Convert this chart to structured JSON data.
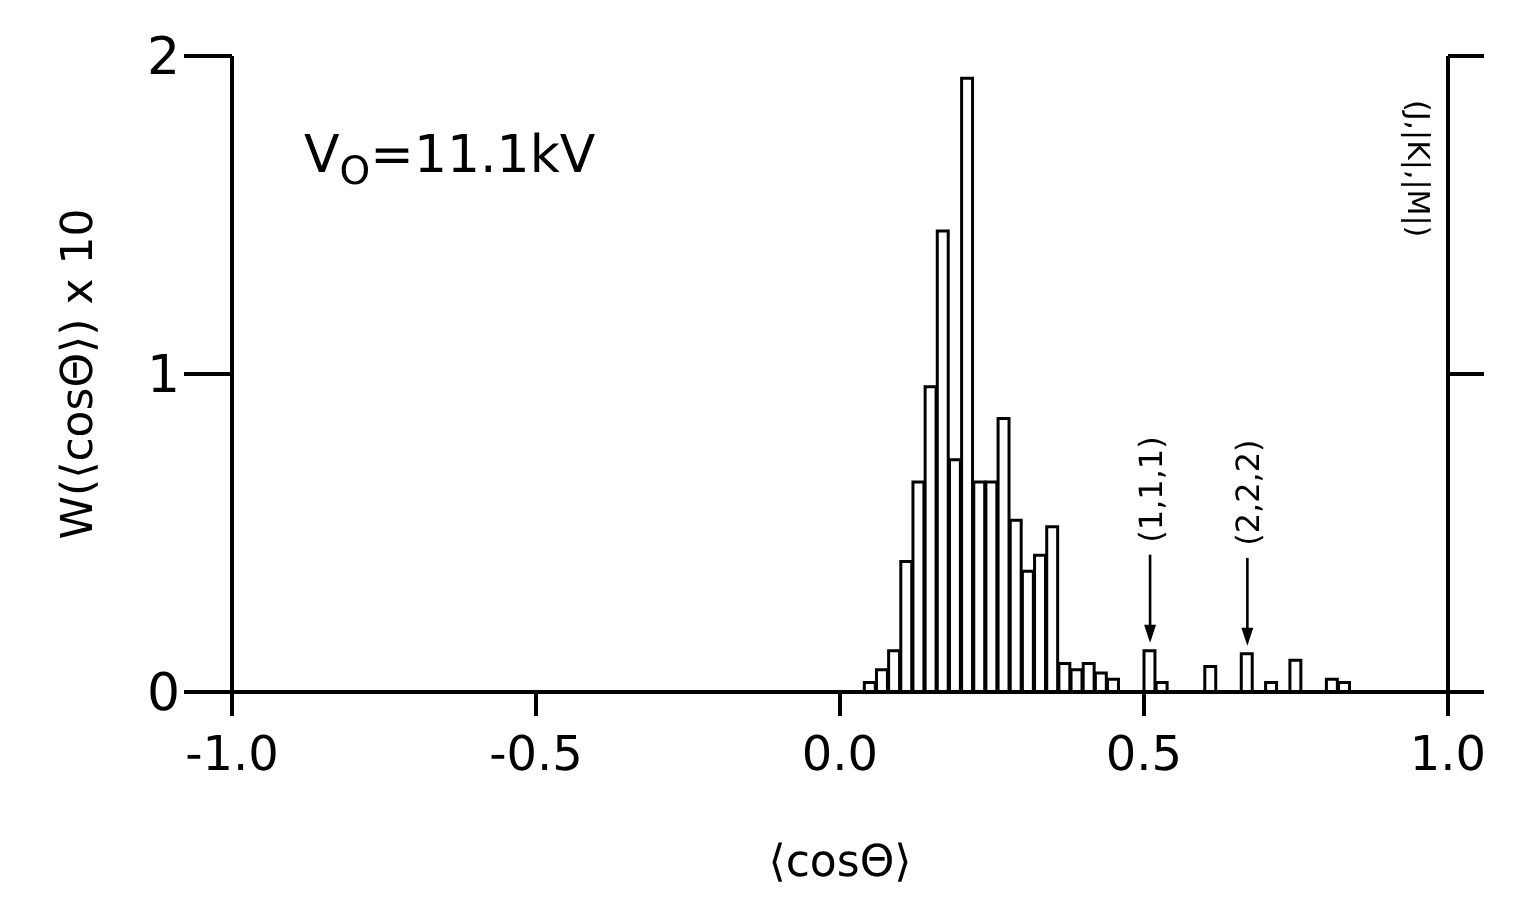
{
  "chart_data": {
    "type": "histogram",
    "xlabel": "⟨cosΘ⟩",
    "ylabel": "W(⟨cosΘ⟩) x 10",
    "bins": [
      0.04,
      0.06,
      0.08,
      0.1,
      0.12,
      0.14,
      0.16,
      0.18,
      0.2,
      0.22,
      0.24,
      0.26,
      0.28,
      0.3,
      0.32,
      0.34,
      0.36,
      0.38,
      0.4,
      0.42,
      0.44,
      0.46,
      0.48,
      0.5,
      0.52,
      0.54,
      0.56,
      0.58,
      0.6,
      0.62,
      0.64,
      0.66,
      0.68,
      0.7,
      0.72,
      0.74,
      0.76,
      0.78,
      0.8,
      0.82,
      0.84
    ],
    "values": [
      0.03,
      0.07,
      0.13,
      0.41,
      0.66,
      0.96,
      1.45,
      0.73,
      1.93,
      0.66,
      0.66,
      0.86,
      0.54,
      0.38,
      0.43,
      0.52,
      0.09,
      0.07,
      0.09,
      0.06,
      0.04,
      0,
      0,
      0.13,
      0.03,
      0,
      0,
      0,
      0.08,
      0,
      0,
      0.12,
      0,
      0.03,
      0,
      0.1,
      0,
      0,
      0.04,
      0.03
    ],
    "color": "#000000",
    "xlim": [
      -1,
      1
    ],
    "xticks": [
      {
        "value": -1,
        "label": "-1.0"
      },
      {
        "value": -0.5,
        "label": "-0.5"
      },
      {
        "value": 0,
        "label": "0.0"
      },
      {
        "value": 0.5,
        "label": "0.5"
      },
      {
        "value": 1,
        "label": "1.0"
      }
    ],
    "ylim": [
      0,
      2
    ],
    "yticks": [
      0,
      1,
      2
    ],
    "grid": false,
    "legend": false,
    "annotations": [
      "V$_{O}$=11.1kV",
      "(J,|K|,|M|)",
      {
        "text": "(1,1,1)",
        "x": 0.51,
        "y": 0.13
      },
      {
        "text": "(2,2,2)",
        "x": 0.67,
        "y": 0.12
      }
    ]
  }
}
